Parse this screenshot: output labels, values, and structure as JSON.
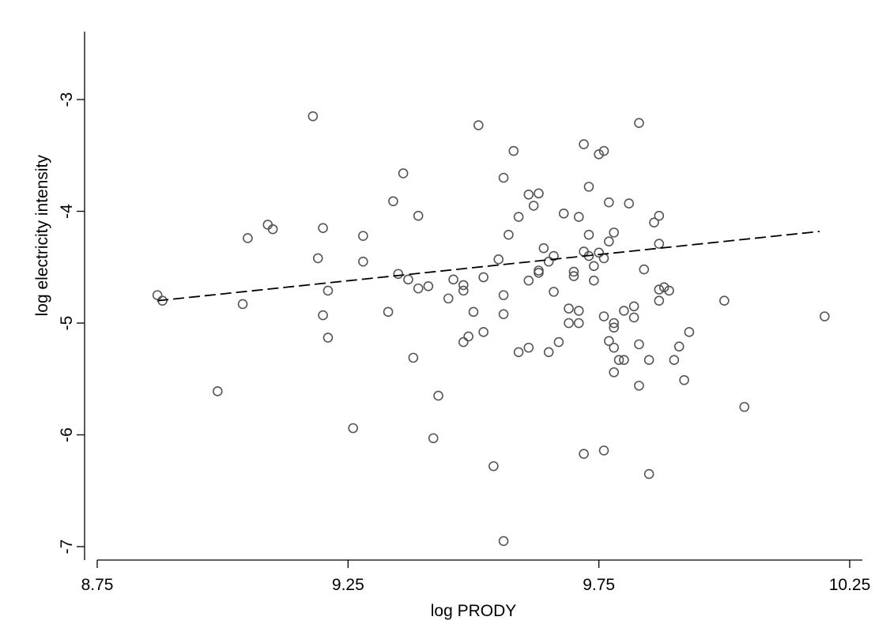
{
  "chart_data": {
    "type": "scatter",
    "title": "",
    "xlabel": "log PRODY",
    "ylabel": "log electricity intensity",
    "xlim": [
      8.75,
      10.27
    ],
    "ylim": [
      -7.15,
      -2.4
    ],
    "xticks": [
      8.75,
      9.25,
      9.75,
      10.25
    ],
    "xtick_labels": [
      "8.75",
      "9.25",
      "9.75",
      "10.25"
    ],
    "yticks": [
      -3,
      -4,
      -5,
      -6,
      -7
    ],
    "ytick_labels": [
      "-3",
      "-4",
      "-5",
      "-6",
      "-7"
    ],
    "grid": false,
    "legend": "none",
    "marker_color": "#555555",
    "fit_line": {
      "style": "dashed",
      "color": "#000000",
      "x": [
        8.87,
        10.19
      ],
      "y": [
        -4.8,
        -4.18
      ]
    },
    "points": [
      {
        "x": 8.87,
        "y": -4.75
      },
      {
        "x": 8.88,
        "y": -4.8
      },
      {
        "x": 8.99,
        "y": -5.61
      },
      {
        "x": 9.04,
        "y": -4.83
      },
      {
        "x": 9.05,
        "y": -4.24
      },
      {
        "x": 9.09,
        "y": -4.12
      },
      {
        "x": 9.1,
        "y": -4.16
      },
      {
        "x": 9.18,
        "y": -3.15
      },
      {
        "x": 9.19,
        "y": -4.42
      },
      {
        "x": 9.2,
        "y": -4.15
      },
      {
        "x": 9.2,
        "y": -4.93
      },
      {
        "x": 9.21,
        "y": -4.71
      },
      {
        "x": 9.21,
        "y": -5.13
      },
      {
        "x": 9.26,
        "y": -5.94
      },
      {
        "x": 9.28,
        "y": -4.22
      },
      {
        "x": 9.28,
        "y": -4.45
      },
      {
        "x": 9.33,
        "y": -4.9
      },
      {
        "x": 9.34,
        "y": -3.91
      },
      {
        "x": 9.35,
        "y": -4.56
      },
      {
        "x": 9.36,
        "y": -3.66
      },
      {
        "x": 9.37,
        "y": -4.61
      },
      {
        "x": 9.38,
        "y": -5.31
      },
      {
        "x": 9.39,
        "y": -4.04
      },
      {
        "x": 9.39,
        "y": -4.69
      },
      {
        "x": 9.41,
        "y": -4.67
      },
      {
        "x": 9.42,
        "y": -6.03
      },
      {
        "x": 9.43,
        "y": -5.65
      },
      {
        "x": 9.45,
        "y": -4.78
      },
      {
        "x": 9.46,
        "y": -4.61
      },
      {
        "x": 9.48,
        "y": -4.66
      },
      {
        "x": 9.48,
        "y": -5.17
      },
      {
        "x": 9.48,
        "y": -4.71
      },
      {
        "x": 9.49,
        "y": -5.12
      },
      {
        "x": 9.5,
        "y": -4.9
      },
      {
        "x": 9.51,
        "y": -3.23
      },
      {
        "x": 9.52,
        "y": -5.08
      },
      {
        "x": 9.52,
        "y": -4.59
      },
      {
        "x": 9.54,
        "y": -6.28
      },
      {
        "x": 9.55,
        "y": -4.43
      },
      {
        "x": 9.56,
        "y": -3.7
      },
      {
        "x": 9.56,
        "y": -4.75
      },
      {
        "x": 9.56,
        "y": -4.92
      },
      {
        "x": 9.56,
        "y": -6.95
      },
      {
        "x": 9.57,
        "y": -4.21
      },
      {
        "x": 9.58,
        "y": -3.46
      },
      {
        "x": 9.59,
        "y": -5.26
      },
      {
        "x": 9.59,
        "y": -4.05
      },
      {
        "x": 9.61,
        "y": -3.85
      },
      {
        "x": 9.61,
        "y": -4.62
      },
      {
        "x": 9.61,
        "y": -5.22
      },
      {
        "x": 9.62,
        "y": -3.95
      },
      {
        "x": 9.63,
        "y": -3.84
      },
      {
        "x": 9.63,
        "y": -4.53
      },
      {
        "x": 9.63,
        "y": -4.55
      },
      {
        "x": 9.64,
        "y": -4.33
      },
      {
        "x": 9.65,
        "y": -4.45
      },
      {
        "x": 9.65,
        "y": -5.26
      },
      {
        "x": 9.66,
        "y": -4.4
      },
      {
        "x": 9.66,
        "y": -4.72
      },
      {
        "x": 9.67,
        "y": -5.17
      },
      {
        "x": 9.68,
        "y": -4.02
      },
      {
        "x": 9.69,
        "y": -4.87
      },
      {
        "x": 9.69,
        "y": -5.0
      },
      {
        "x": 9.7,
        "y": -4.58
      },
      {
        "x": 9.7,
        "y": -4.54
      },
      {
        "x": 9.71,
        "y": -5.0
      },
      {
        "x": 9.71,
        "y": -4.05
      },
      {
        "x": 9.71,
        "y": -4.89
      },
      {
        "x": 9.72,
        "y": -4.36
      },
      {
        "x": 9.72,
        "y": -6.17
      },
      {
        "x": 9.72,
        "y": -3.4
      },
      {
        "x": 9.73,
        "y": -4.21
      },
      {
        "x": 9.73,
        "y": -3.78
      },
      {
        "x": 9.73,
        "y": -4.4
      },
      {
        "x": 9.74,
        "y": -4.49
      },
      {
        "x": 9.74,
        "y": -4.62
      },
      {
        "x": 9.75,
        "y": -3.49
      },
      {
        "x": 9.75,
        "y": -4.37
      },
      {
        "x": 9.76,
        "y": -3.46
      },
      {
        "x": 9.76,
        "y": -4.42
      },
      {
        "x": 9.76,
        "y": -6.14
      },
      {
        "x": 9.76,
        "y": -4.94
      },
      {
        "x": 9.77,
        "y": -3.92
      },
      {
        "x": 9.77,
        "y": -4.27
      },
      {
        "x": 9.77,
        "y": -5.16
      },
      {
        "x": 9.78,
        "y": -5.04
      },
      {
        "x": 9.78,
        "y": -5.22
      },
      {
        "x": 9.78,
        "y": -5.44
      },
      {
        "x": 9.78,
        "y": -5.0
      },
      {
        "x": 9.78,
        "y": -4.19
      },
      {
        "x": 9.79,
        "y": -5.33
      },
      {
        "x": 9.8,
        "y": -4.89
      },
      {
        "x": 9.8,
        "y": -5.33
      },
      {
        "x": 9.81,
        "y": -3.93
      },
      {
        "x": 9.82,
        "y": -4.85
      },
      {
        "x": 9.82,
        "y": -4.95
      },
      {
        "x": 9.83,
        "y": -3.21
      },
      {
        "x": 9.83,
        "y": -5.56
      },
      {
        "x": 9.83,
        "y": -5.19
      },
      {
        "x": 9.84,
        "y": -4.52
      },
      {
        "x": 9.85,
        "y": -6.35
      },
      {
        "x": 9.85,
        "y": -5.33
      },
      {
        "x": 9.86,
        "y": -4.1
      },
      {
        "x": 9.87,
        "y": -4.04
      },
      {
        "x": 9.87,
        "y": -4.29
      },
      {
        "x": 9.87,
        "y": -4.8
      },
      {
        "x": 9.87,
        "y": -4.7
      },
      {
        "x": 9.88,
        "y": -4.68
      },
      {
        "x": 9.89,
        "y": -4.71
      },
      {
        "x": 9.9,
        "y": -5.33
      },
      {
        "x": 9.91,
        "y": -5.21
      },
      {
        "x": 9.92,
        "y": -5.51
      },
      {
        "x": 9.93,
        "y": -5.08
      },
      {
        "x": 10.0,
        "y": -4.8
      },
      {
        "x": 10.04,
        "y": -5.75
      },
      {
        "x": 10.2,
        "y": -4.94
      }
    ]
  }
}
